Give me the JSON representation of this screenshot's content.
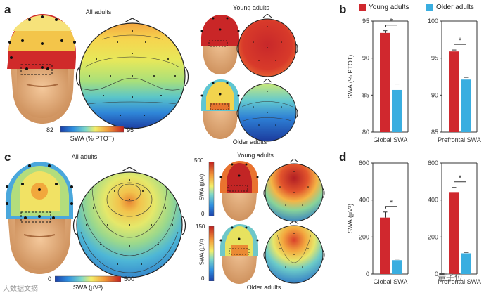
{
  "panels": {
    "a": {
      "letter": "a",
      "all_title": "All adults",
      "young_title": "Young adults",
      "older_title": "Older adults",
      "colorbar_min": "82",
      "colorbar_max": "95",
      "colorbar_label": "SWA (% PTOT)"
    },
    "c": {
      "letter": "c",
      "all_title": "All adults",
      "young_title": "Young adults",
      "older_title": "Older adults",
      "colorbar_min": "0",
      "colorbar_max": "500",
      "colorbar_label": "SWA (µV²)",
      "young_scale_top": "500",
      "young_scale_bottom": "0",
      "young_scale_label": "SWA (µV²)",
      "older_scale_top": "150",
      "older_scale_bottom": "0",
      "older_scale_label": "SWA (µV²)"
    },
    "b": {
      "letter": "b"
    },
    "d": {
      "letter": "d"
    }
  },
  "legend": {
    "young": "Young adults",
    "older": "Older adults",
    "young_color": "#d0282e",
    "older_color": "#3aaee0"
  },
  "watermarks": {
    "left": "大数据文摘",
    "right": "量子位"
  },
  "chart_data": [
    {
      "id": "b-global",
      "type": "bar",
      "categories": [
        "Global SWA"
      ],
      "series": [
        {
          "name": "Young adults",
          "values": [
            93.4
          ],
          "error": [
            0.3
          ]
        },
        {
          "name": "Older adults",
          "values": [
            85.7
          ],
          "error": [
            0.8
          ]
        }
      ],
      "ylabel": "SWA (% PTOT)",
      "ylim": [
        80,
        95
      ],
      "yticks": [
        "80",
        "85",
        "90",
        "95"
      ],
      "xlabel": "Global SWA",
      "significance": "*"
    },
    {
      "id": "b-prefrontal",
      "type": "bar",
      "categories": [
        "Prefrontal SWA"
      ],
      "series": [
        {
          "name": "Young adults",
          "values": [
            95.9
          ],
          "error": [
            0.2
          ]
        },
        {
          "name": "Older adults",
          "values": [
            92.1
          ],
          "error": [
            0.3
          ]
        }
      ],
      "ylabel": "",
      "ylim": [
        85,
        100
      ],
      "yticks": [
        "85",
        "90",
        "95",
        "100"
      ],
      "xlabel": "Prefrontal SWA",
      "significance": "*"
    },
    {
      "id": "d-global",
      "type": "bar",
      "categories": [
        "Global SWA"
      ],
      "series": [
        {
          "name": "Young adults",
          "values": [
            305
          ],
          "error": [
            30
          ]
        },
        {
          "name": "Older adults",
          "values": [
            75
          ],
          "error": [
            6
          ]
        }
      ],
      "ylabel": "SWA (µV²)",
      "ylim": [
        0,
        600
      ],
      "yticks": [
        "0",
        "200",
        "400",
        "600"
      ],
      "xlabel": "Global SWA",
      "significance": "*"
    },
    {
      "id": "d-prefrontal",
      "type": "bar",
      "categories": [
        "Prefrontal SWA"
      ],
      "series": [
        {
          "name": "Young adults",
          "values": [
            443
          ],
          "error": [
            25
          ]
        },
        {
          "name": "Older adults",
          "values": [
            112
          ],
          "error": [
            5
          ]
        }
      ],
      "ylabel": "",
      "ylim": [
        0,
        600
      ],
      "yticks": [
        "0",
        "200",
        "400",
        "600"
      ],
      "xlabel": "Prefrontal SWA",
      "significance": "*"
    }
  ]
}
